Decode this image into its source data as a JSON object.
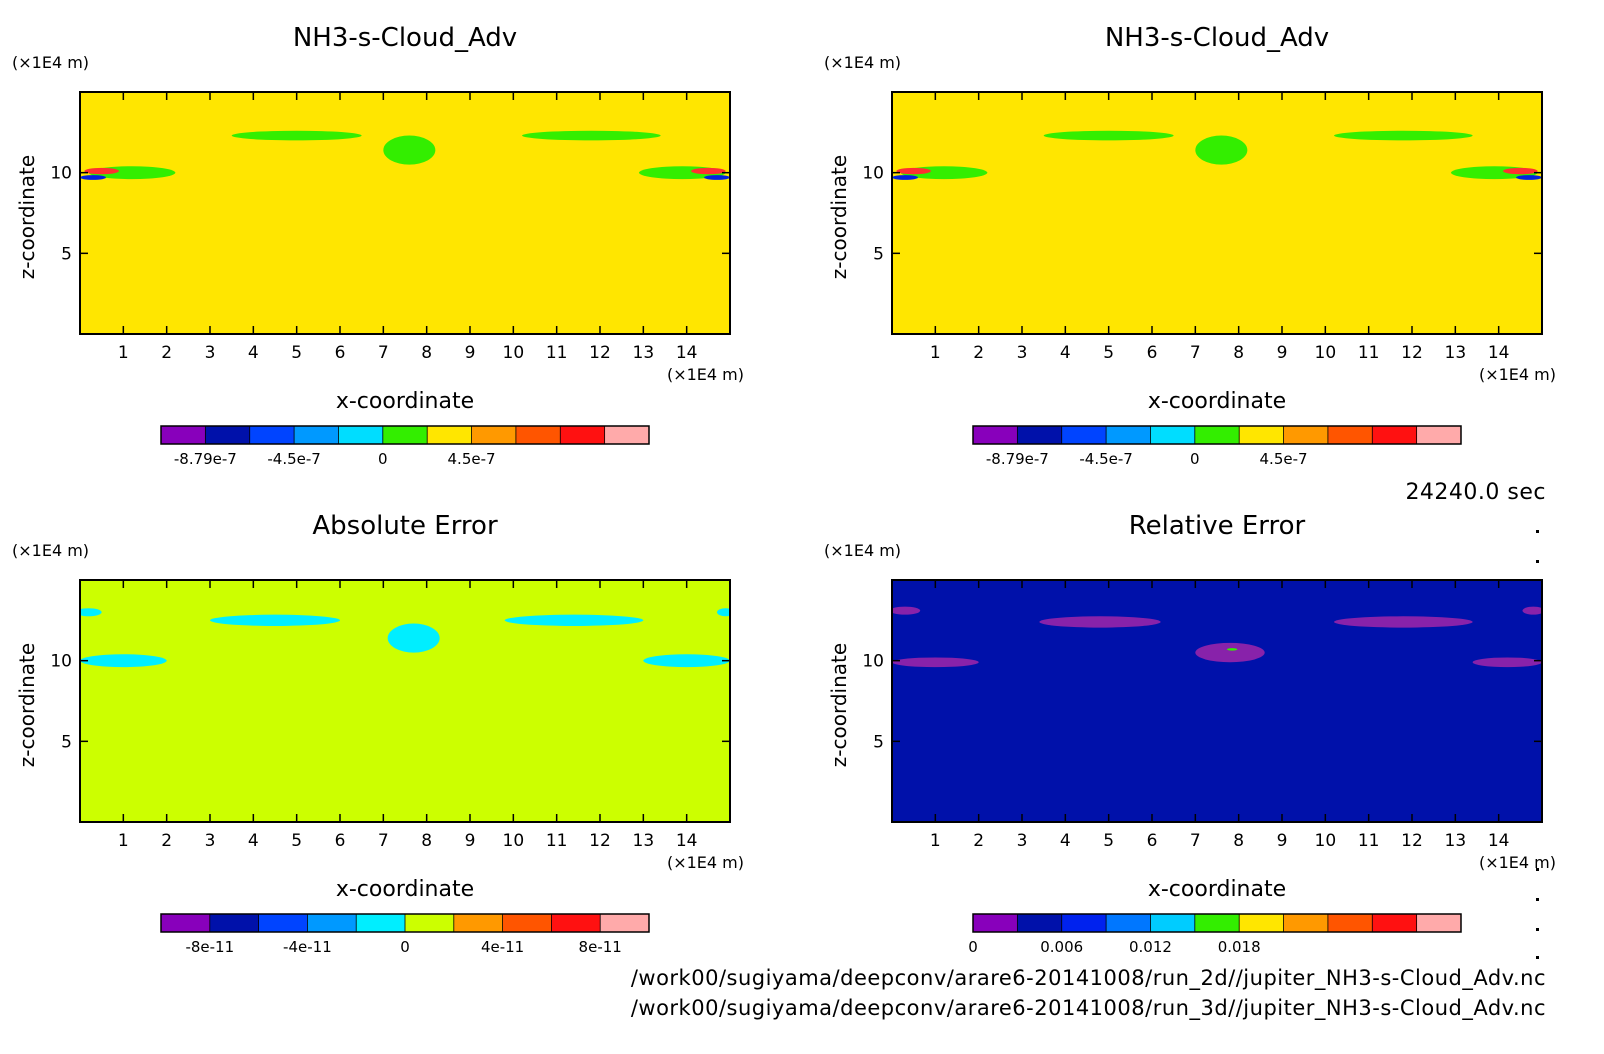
{
  "time_label": "24240.0 sec",
  "file_paths": [
    "/work00/sugiyama/deepconv/arare6-20141008/run_2d//jupiter_NH3-s-Cloud_Adv.nc",
    "/work00/sugiyama/deepconv/arare6-20141008/run_3d//jupiter_NH3-s-Cloud_Adv.nc"
  ],
  "chart_data": [
    {
      "type": "heatmap",
      "title": "NH3-s-Cloud_Adv",
      "xlabel": "x-coordinate",
      "ylabel": "z-coordinate",
      "x_unit": "(×1E4 m)",
      "y_unit": "(×1E4 m)",
      "xlim": [
        0,
        15
      ],
      "ylim": [
        0,
        15
      ],
      "x_ticks": [
        1,
        2,
        3,
        4,
        5,
        6,
        7,
        8,
        9,
        10,
        11,
        12,
        13,
        14
      ],
      "y_ticks": [
        5,
        10
      ],
      "background": "#ffe600",
      "features": [
        {
          "shape": "ellipse",
          "x": 11.8,
          "z": 12.3,
          "rx": 1.6,
          "rz": 0.3,
          "color": "#33ee00"
        },
        {
          "shape": "ellipse",
          "x": 5.0,
          "z": 12.3,
          "rx": 1.5,
          "rz": 0.3,
          "color": "#33ee00"
        },
        {
          "shape": "ellipse",
          "x": 7.6,
          "z": 11.4,
          "rx": 0.6,
          "rz": 0.9,
          "color": "#33ee00"
        },
        {
          "shape": "ellipse",
          "x": 1.2,
          "z": 10.0,
          "rx": 1.0,
          "rz": 0.4,
          "color": "#33ee00"
        },
        {
          "shape": "ellipse",
          "x": 13.9,
          "z": 10.0,
          "rx": 1.0,
          "rz": 0.4,
          "color": "#33ee00"
        },
        {
          "shape": "ellipse",
          "x": 0.5,
          "z": 10.1,
          "rx": 0.4,
          "rz": 0.2,
          "color": "#ff3030"
        },
        {
          "shape": "ellipse",
          "x": 14.5,
          "z": 10.1,
          "rx": 0.4,
          "rz": 0.2,
          "color": "#ff3030"
        },
        {
          "shape": "ellipse",
          "x": 0.3,
          "z": 9.7,
          "rx": 0.3,
          "rz": 0.15,
          "color": "#0022dd"
        },
        {
          "shape": "ellipse",
          "x": 14.7,
          "z": 9.7,
          "rx": 0.3,
          "rz": 0.15,
          "color": "#0022dd"
        }
      ],
      "colorbar": {
        "colors": [
          "#8800bb",
          "#0011aa",
          "#0044ff",
          "#0099ff",
          "#00ddff",
          "#33ee00",
          "#ffe600",
          "#ff9900",
          "#ff5500",
          "#ff1111",
          "#ffaaaa"
        ],
        "labels": [
          "-8.79e-7",
          "-4.5e-7",
          "0",
          "4.5e-7"
        ]
      }
    },
    {
      "type": "heatmap",
      "title": "NH3-s-Cloud_Adv",
      "xlabel": "x-coordinate",
      "ylabel": "z-coordinate",
      "x_unit": "(×1E4 m)",
      "y_unit": "(×1E4 m)",
      "xlim": [
        0,
        15
      ],
      "ylim": [
        0,
        15
      ],
      "x_ticks": [
        1,
        2,
        3,
        4,
        5,
        6,
        7,
        8,
        9,
        10,
        11,
        12,
        13,
        14
      ],
      "y_ticks": [
        5,
        10
      ],
      "background": "#ffe600",
      "features": [
        {
          "shape": "ellipse",
          "x": 11.8,
          "z": 12.3,
          "rx": 1.6,
          "rz": 0.3,
          "color": "#33ee00"
        },
        {
          "shape": "ellipse",
          "x": 5.0,
          "z": 12.3,
          "rx": 1.5,
          "rz": 0.3,
          "color": "#33ee00"
        },
        {
          "shape": "ellipse",
          "x": 7.6,
          "z": 11.4,
          "rx": 0.6,
          "rz": 0.9,
          "color": "#33ee00"
        },
        {
          "shape": "ellipse",
          "x": 1.2,
          "z": 10.0,
          "rx": 1.0,
          "rz": 0.4,
          "color": "#33ee00"
        },
        {
          "shape": "ellipse",
          "x": 13.9,
          "z": 10.0,
          "rx": 1.0,
          "rz": 0.4,
          "color": "#33ee00"
        },
        {
          "shape": "ellipse",
          "x": 0.5,
          "z": 10.1,
          "rx": 0.4,
          "rz": 0.2,
          "color": "#ff3030"
        },
        {
          "shape": "ellipse",
          "x": 14.5,
          "z": 10.1,
          "rx": 0.4,
          "rz": 0.2,
          "color": "#ff3030"
        },
        {
          "shape": "ellipse",
          "x": 0.3,
          "z": 9.7,
          "rx": 0.3,
          "rz": 0.15,
          "color": "#0022dd"
        },
        {
          "shape": "ellipse",
          "x": 14.7,
          "z": 9.7,
          "rx": 0.3,
          "rz": 0.15,
          "color": "#0022dd"
        }
      ],
      "colorbar": {
        "colors": [
          "#8800bb",
          "#0011aa",
          "#0044ff",
          "#0099ff",
          "#00ddff",
          "#33ee00",
          "#ffe600",
          "#ff9900",
          "#ff5500",
          "#ff1111",
          "#ffaaaa"
        ],
        "labels": [
          "-8.79e-7",
          "-4.5e-7",
          "0",
          "4.5e-7"
        ]
      }
    },
    {
      "type": "heatmap",
      "title": "Absolute Error",
      "xlabel": "x-coordinate",
      "ylabel": "z-coordinate",
      "x_unit": "(×1E4 m)",
      "y_unit": "(×1E4 m)",
      "xlim": [
        0,
        15
      ],
      "ylim": [
        0,
        15
      ],
      "x_ticks": [
        1,
        2,
        3,
        4,
        5,
        6,
        7,
        8,
        9,
        10,
        11,
        12,
        13,
        14
      ],
      "y_ticks": [
        5,
        10
      ],
      "background": "#ccff00",
      "features": [
        {
          "shape": "ellipse",
          "x": 11.4,
          "z": 12.5,
          "rx": 1.6,
          "rz": 0.35,
          "color": "#00eeff"
        },
        {
          "shape": "ellipse",
          "x": 4.5,
          "z": 12.5,
          "rx": 1.5,
          "rz": 0.35,
          "color": "#00eeff"
        },
        {
          "shape": "ellipse",
          "x": 7.7,
          "z": 11.4,
          "rx": 0.6,
          "rz": 0.9,
          "color": "#00eeff"
        },
        {
          "shape": "ellipse",
          "x": 1.0,
          "z": 10.0,
          "rx": 1.0,
          "rz": 0.4,
          "color": "#00eeff"
        },
        {
          "shape": "ellipse",
          "x": 14.0,
          "z": 10.0,
          "rx": 1.0,
          "rz": 0.4,
          "color": "#00eeff"
        },
        {
          "shape": "ellipse",
          "x": 0.2,
          "z": 13.0,
          "rx": 0.3,
          "rz": 0.25,
          "color": "#00eeff"
        },
        {
          "shape": "ellipse",
          "x": 14.9,
          "z": 13.0,
          "rx": 0.2,
          "rz": 0.25,
          "color": "#00eeff"
        }
      ],
      "colorbar": {
        "colors": [
          "#8800bb",
          "#0011aa",
          "#0044ff",
          "#0099ff",
          "#00eeff",
          "#ccff00",
          "#ff9900",
          "#ff5500",
          "#ff1111",
          "#ffaaaa"
        ],
        "labels": [
          "-8e-11",
          "-4e-11",
          "0",
          "4e-11",
          "8e-11"
        ]
      }
    },
    {
      "type": "heatmap",
      "title": "Relative Error",
      "xlabel": "x-coordinate",
      "ylabel": "z-coordinate",
      "x_unit": "(×1E4 m)",
      "y_unit": "(×1E4 m)",
      "xlim": [
        0,
        15
      ],
      "ylim": [
        0,
        15
      ],
      "x_ticks": [
        1,
        2,
        3,
        4,
        5,
        6,
        7,
        8,
        9,
        10,
        11,
        12,
        13,
        14
      ],
      "y_ticks": [
        5,
        10
      ],
      "background": "#0011aa",
      "features": [
        {
          "shape": "ellipse",
          "x": 11.8,
          "z": 12.4,
          "rx": 1.6,
          "rz": 0.35,
          "color": "#8822aa"
        },
        {
          "shape": "ellipse",
          "x": 4.8,
          "z": 12.4,
          "rx": 1.4,
          "rz": 0.35,
          "color": "#8822aa"
        },
        {
          "shape": "ellipse",
          "x": 7.8,
          "z": 10.5,
          "rx": 0.8,
          "rz": 0.6,
          "color": "#8822aa"
        },
        {
          "shape": "ellipse",
          "x": 1.0,
          "z": 9.9,
          "rx": 1.0,
          "rz": 0.3,
          "color": "#8822aa"
        },
        {
          "shape": "ellipse",
          "x": 14.2,
          "z": 9.9,
          "rx": 0.8,
          "rz": 0.3,
          "color": "#8822aa"
        },
        {
          "shape": "ellipse",
          "x": 0.3,
          "z": 13.1,
          "rx": 0.35,
          "rz": 0.25,
          "color": "#8822aa"
        },
        {
          "shape": "ellipse",
          "x": 14.8,
          "z": 13.1,
          "rx": 0.25,
          "rz": 0.25,
          "color": "#8822aa"
        },
        {
          "shape": "ellipse",
          "x": 7.85,
          "z": 10.7,
          "rx": 0.12,
          "rz": 0.08,
          "color": "#33ee00"
        }
      ],
      "colorbar": {
        "colors": [
          "#8800bb",
          "#0011aa",
          "#0022ee",
          "#0077ff",
          "#00ccff",
          "#33ee00",
          "#ffe600",
          "#ff9900",
          "#ff5500",
          "#ff1111",
          "#ffaaaa"
        ],
        "labels": [
          "0",
          "0.006",
          "0.012",
          "0.018"
        ]
      }
    }
  ]
}
